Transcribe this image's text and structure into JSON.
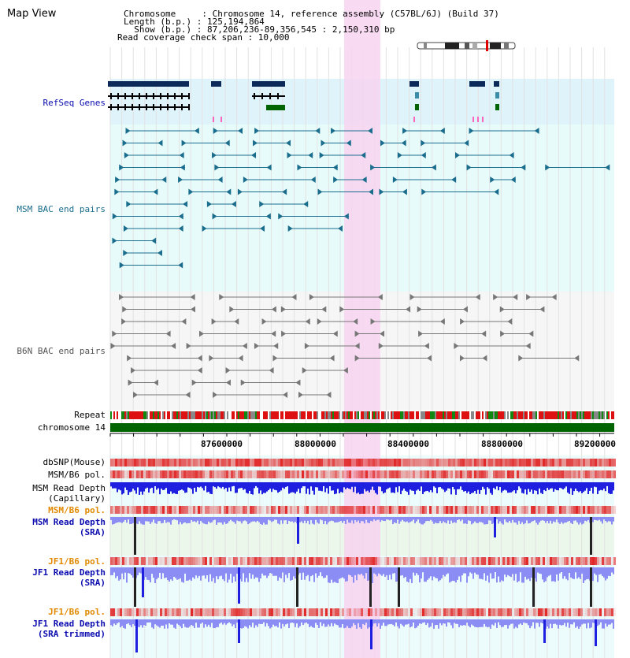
{
  "header": {
    "title": "Map View",
    "lines": [
      "Chromosome     : Chromosome 14, reference assembly (C57BL/6J) (Build 37)",
      "Length (b.p.) : 125,194,864",
      "  Show (b.p.) : 87,206,236-89,356,545 : 2,150,310 bp",
      "Read coverage check span : 10,000"
    ]
  },
  "tracks": {
    "refseq": "RefSeq Genes",
    "msm_bac": "MSM BAC end pairs",
    "b6n_bac": "B6N BAC end pairs",
    "repeat": "Repeat",
    "chromosome": "chromosome 14",
    "dbsnp": "dbSNP(Mouse)",
    "msm_b6_pol_1": "MSM/B6 pol.",
    "msm_depth_cap_1": "MSM Read Depth",
    "msm_depth_cap_2": "(Capillary)",
    "msm_b6_pol_2": "MSM/B6 pol.",
    "msm_depth_sra_1": "MSM Read Depth",
    "msm_depth_sra_2": "(SRA)",
    "jf1_b6_pol_1": "JF1/B6 pol.",
    "jf1_depth_sra_1": "JF1 Read Depth",
    "jf1_depth_sra_2": "(SRA)",
    "jf1_b6_pol_2": "JF1/B6 pol.",
    "jf1_depth_trim_1": "JF1 Read Depth",
    "jf1_depth_trim_2": "(SRA trimmed)"
  },
  "axis": {
    "ticks": [
      "87600000",
      "88000000",
      "88400000",
      "88800000",
      "89200000"
    ]
  },
  "colors": {
    "highlight": "#f7d4f0",
    "refseq_bg": "#dff3fb",
    "bac_bg": "#e8fbfb",
    "gene_dark": "#0b2a5a",
    "gene_green": "#006400",
    "msm_bac": "#1a6d8c",
    "b6n_bac": "#777777",
    "chromosome": "#006400",
    "depth": "#1f1fe0",
    "depth_light": "#8c8cf5",
    "label_blue": "#0b0bb0",
    "label_orange": "#e08a00"
  }
}
